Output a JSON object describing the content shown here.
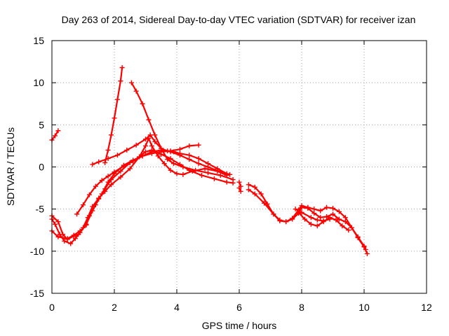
{
  "chart_data": {
    "type": "scatter",
    "title": "Day 263 of 2014, Sidereal Day-to-day VTEC variation (SDTVAR) for receiver izan",
    "xlabel": "GPS time / hours",
    "ylabel": "SDTVAR / TECUs",
    "xlim": [
      0,
      12
    ],
    "ylim": [
      -15,
      15
    ],
    "xticks": [
      0,
      2,
      4,
      6,
      8,
      10,
      12
    ],
    "yticks": [
      -15,
      -10,
      -5,
      0,
      5,
      10,
      15
    ],
    "xtick_labels": [
      "0",
      "2",
      "4",
      "6",
      "8",
      "10",
      "12"
    ],
    "ytick_labels": [
      "-15",
      "-10",
      "-5",
      "0",
      "5",
      "10",
      "15"
    ],
    "grid": true,
    "legend": "none",
    "marker": "plus",
    "color": "#ff0000",
    "series": [
      {
        "name": "trace-1",
        "points": [
          [
            0.0,
            3.2
          ],
          [
            0.1,
            3.7
          ],
          [
            0.2,
            4.3
          ]
        ]
      },
      {
        "name": "trace-2",
        "points": [
          [
            1.7,
            0.5
          ],
          [
            1.8,
            2.0
          ],
          [
            1.9,
            3.8
          ],
          [
            2.0,
            5.8
          ],
          [
            2.1,
            8.0
          ],
          [
            2.2,
            10.2
          ],
          [
            2.25,
            11.8
          ]
        ]
      },
      {
        "name": "trace-3",
        "points": [
          [
            2.55,
            10.0
          ],
          [
            2.7,
            9.0
          ],
          [
            2.9,
            7.5
          ],
          [
            3.1,
            5.6
          ],
          [
            3.3,
            3.8
          ],
          [
            3.5,
            2.2
          ],
          [
            3.7,
            0.9
          ],
          [
            3.9,
            0.4
          ],
          [
            4.2,
            0.0
          ],
          [
            4.6,
            -0.4
          ],
          [
            5.0,
            -0.7
          ],
          [
            5.4,
            -1.0
          ],
          [
            5.8,
            -1.5
          ]
        ]
      },
      {
        "name": "trace-4",
        "points": [
          [
            0.0,
            -6.2
          ],
          [
            0.1,
            -6.8
          ],
          [
            0.25,
            -8.0
          ],
          [
            0.4,
            -8.8
          ],
          [
            0.6,
            -9.1
          ],
          [
            0.75,
            -8.5
          ],
          [
            0.9,
            -7.8
          ],
          [
            1.1,
            -6.8
          ],
          [
            1.3,
            -5.2
          ],
          [
            1.5,
            -3.8
          ],
          [
            1.7,
            -2.6
          ],
          [
            1.9,
            -1.5
          ],
          [
            2.2,
            -0.5
          ],
          [
            2.5,
            0.5
          ],
          [
            2.8,
            1.2
          ],
          [
            3.0,
            1.8
          ],
          [
            3.2,
            2.0
          ],
          [
            3.5,
            1.5
          ],
          [
            3.8,
            1.0
          ],
          [
            4.1,
            0.3
          ],
          [
            4.4,
            -0.4
          ],
          [
            4.8,
            -1.0
          ],
          [
            5.2,
            -1.4
          ],
          [
            5.6,
            -1.8
          ],
          [
            5.8,
            -1.9
          ]
        ]
      },
      {
        "name": "trace-5",
        "points": [
          [
            0.0,
            -7.6
          ],
          [
            0.2,
            -8.3
          ],
          [
            0.5,
            -8.5
          ],
          [
            0.7,
            -8.1
          ],
          [
            0.9,
            -7.6
          ],
          [
            1.1,
            -6.9
          ],
          [
            1.2,
            -5.8
          ],
          [
            1.4,
            -4.5
          ],
          [
            1.6,
            -3.2
          ],
          [
            1.8,
            -1.8
          ],
          [
            2.0,
            -0.8
          ],
          [
            2.3,
            0.2
          ],
          [
            2.6,
            0.8
          ],
          [
            2.9,
            1.3
          ],
          [
            3.2,
            1.6
          ],
          [
            3.5,
            1.8
          ],
          [
            3.8,
            1.9
          ],
          [
            4.1,
            2.1
          ],
          [
            4.4,
            2.5
          ],
          [
            4.7,
            2.6
          ]
        ]
      },
      {
        "name": "trace-6",
        "points": [
          [
            0.0,
            -5.8
          ],
          [
            0.2,
            -6.5
          ],
          [
            0.35,
            -8.0
          ],
          [
            0.5,
            -8.6
          ],
          [
            0.7,
            -8.2
          ],
          [
            0.85,
            -8.0
          ],
          [
            1.0,
            -7.2
          ],
          [
            1.15,
            -6.0
          ],
          [
            1.3,
            -4.7
          ],
          [
            1.5,
            -3.7
          ],
          [
            1.7,
            -2.9
          ],
          [
            1.9,
            -2.1
          ],
          [
            2.2,
            -1.2
          ],
          [
            2.5,
            -0.2
          ],
          [
            2.8,
            1.2
          ],
          [
            3.0,
            2.5
          ],
          [
            3.1,
            3.4
          ],
          [
            3.2,
            2.5
          ],
          [
            3.4,
            1.3
          ],
          [
            3.6,
            0.4
          ],
          [
            3.8,
            -0.4
          ],
          [
            4.0,
            -0.8
          ],
          [
            4.2,
            -0.9
          ],
          [
            4.5,
            -0.5
          ],
          [
            4.9,
            -0.2
          ],
          [
            5.3,
            -0.5
          ],
          [
            5.6,
            -1.0
          ]
        ]
      },
      {
        "name": "trace-7",
        "points": [
          [
            0.8,
            -5.6
          ],
          [
            1.0,
            -4.5
          ],
          [
            1.2,
            -3.3
          ],
          [
            1.4,
            -2.3
          ],
          [
            1.6,
            -1.6
          ],
          [
            1.8,
            -1.1
          ],
          [
            2.0,
            -0.6
          ],
          [
            2.3,
            0.1
          ],
          [
            2.6,
            0.7
          ],
          [
            2.9,
            1.3
          ],
          [
            3.2,
            1.8
          ],
          [
            3.5,
            2.0
          ],
          [
            3.8,
            1.8
          ],
          [
            4.1,
            1.4
          ],
          [
            4.4,
            0.9
          ],
          [
            4.7,
            0.4
          ],
          [
            5.0,
            0.0
          ],
          [
            5.4,
            -0.6
          ],
          [
            5.7,
            -0.9
          ]
        ]
      },
      {
        "name": "trace-8",
        "points": [
          [
            1.3,
            0.3
          ],
          [
            1.5,
            0.6
          ],
          [
            1.8,
            1.0
          ],
          [
            2.1,
            1.4
          ],
          [
            2.4,
            2.0
          ],
          [
            2.7,
            2.6
          ],
          [
            3.0,
            3.3
          ],
          [
            3.15,
            3.8
          ],
          [
            3.3,
            3.0
          ],
          [
            3.5,
            2.2
          ],
          [
            3.7,
            1.9
          ],
          [
            3.9,
            1.8
          ],
          [
            4.1,
            1.6
          ],
          [
            4.4,
            1.4
          ],
          [
            4.7,
            1.0
          ],
          [
            5.0,
            0.4
          ],
          [
            5.3,
            -0.2
          ],
          [
            5.6,
            -0.8
          ]
        ]
      },
      {
        "name": "trace-9",
        "points": [
          [
            6.0,
            -1.8
          ],
          [
            6.05,
            -2.3
          ]
        ]
      },
      {
        "name": "trace-10",
        "points": [
          [
            6.0,
            -2.5
          ],
          [
            6.05,
            -2.9
          ]
        ]
      },
      {
        "name": "trace-11",
        "points": [
          [
            6.3,
            -2.1
          ],
          [
            6.5,
            -2.4
          ],
          [
            6.7,
            -3.2
          ],
          [
            6.9,
            -4.4
          ],
          [
            7.1,
            -5.6
          ],
          [
            7.3,
            -6.4
          ],
          [
            7.5,
            -6.5
          ],
          [
            7.7,
            -6.2
          ],
          [
            7.9,
            -5.5
          ],
          [
            8.0,
            -4.8
          ],
          [
            8.2,
            -4.9
          ],
          [
            8.4,
            -5.5
          ],
          [
            8.6,
            -6.0
          ],
          [
            8.8,
            -5.9
          ],
          [
            9.0,
            -5.6
          ],
          [
            9.2,
            -6.2
          ],
          [
            9.4,
            -6.5
          ],
          [
            9.6,
            -7.2
          ],
          [
            9.8,
            -8.4
          ],
          [
            10.0,
            -9.5
          ],
          [
            10.1,
            -10.3
          ]
        ]
      },
      {
        "name": "trace-12",
        "points": [
          [
            6.3,
            -2.7
          ],
          [
            6.5,
            -3.2
          ],
          [
            6.8,
            -4.3
          ],
          [
            7.1,
            -5.6
          ],
          [
            7.3,
            -6.3
          ],
          [
            7.5,
            -6.5
          ],
          [
            7.7,
            -6.1
          ],
          [
            7.9,
            -5.1
          ],
          [
            8.0,
            -4.6
          ],
          [
            8.2,
            -4.8
          ],
          [
            8.4,
            -5.0
          ],
          [
            8.6,
            -5.2
          ],
          [
            8.8,
            -4.8
          ],
          [
            9.0,
            -4.9
          ],
          [
            9.2,
            -5.3
          ],
          [
            9.4,
            -6.0
          ],
          [
            9.6,
            -7.2
          ],
          [
            9.8,
            -8.3
          ],
          [
            10.0,
            -9.4
          ],
          [
            10.05,
            -9.8
          ]
        ]
      },
      {
        "name": "trace-13",
        "points": [
          [
            7.9,
            -5.4
          ],
          [
            8.1,
            -6.2
          ],
          [
            8.3,
            -6.8
          ],
          [
            8.5,
            -7.0
          ],
          [
            8.7,
            -6.5
          ],
          [
            8.9,
            -6.0
          ],
          [
            9.1,
            -6.3
          ],
          [
            9.3,
            -7.0
          ],
          [
            9.5,
            -7.5
          ]
        ]
      },
      {
        "name": "trace-14",
        "points": [
          [
            7.8,
            -5.0
          ],
          [
            8.0,
            -5.4
          ],
          [
            8.3,
            -6.0
          ],
          [
            8.5,
            -6.3
          ],
          [
            8.7,
            -6.4
          ],
          [
            8.9,
            -6.2
          ]
        ]
      }
    ]
  }
}
